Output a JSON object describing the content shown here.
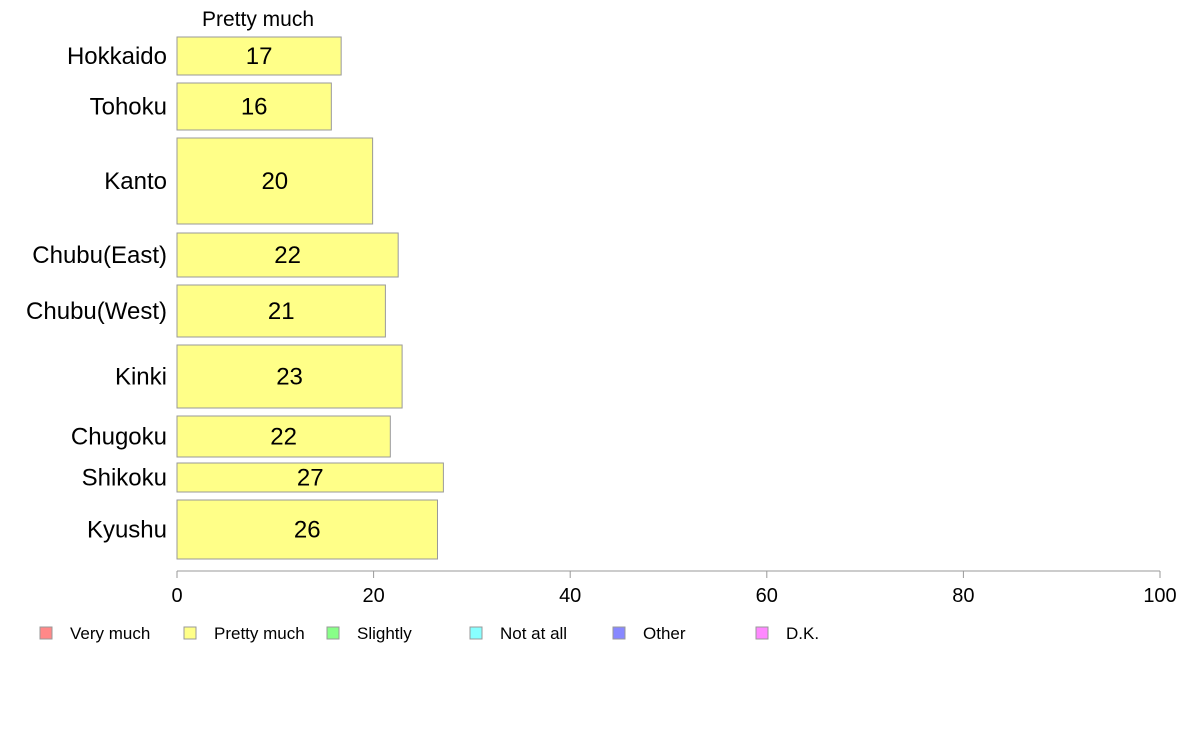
{
  "chart_data": {
    "type": "bar",
    "orientation": "horizontal",
    "column_header": "Pretty much",
    "categories": [
      "Hokkaido",
      "Tohoku",
      "Kanto",
      "Chubu(East)",
      "Chubu(West)",
      "Kinki",
      "Chugoku",
      "Shikoku",
      "Kyushu"
    ],
    "series": [
      {
        "name": "Pretty much",
        "values": [
          16.7,
          15.7,
          19.9,
          22.5,
          21.2,
          22.9,
          21.7,
          27.1,
          26.5
        ],
        "labels": [
          "17",
          "16",
          "20",
          "22",
          "21",
          "23",
          "22",
          "27",
          "26"
        ]
      }
    ],
    "xlim": [
      0,
      100
    ],
    "xticks": [
      0,
      20,
      40,
      60,
      80,
      100
    ],
    "xtick_labels": [
      "0",
      "20",
      "40",
      "60",
      "80",
      "100"
    ],
    "bar_color": "#ffff88",
    "bar_edge_color": "#999999",
    "grid": false,
    "legend": {
      "placement": "bottom",
      "items": [
        {
          "label": "Very much",
          "color": "#ff8888"
        },
        {
          "label": "Pretty much",
          "color": "#ffff88"
        },
        {
          "label": "Slightly",
          "color": "#88ff88"
        },
        {
          "label": "Not at all",
          "color": "#88ffff"
        },
        {
          "label": "Other",
          "color": "#8888ff"
        },
        {
          "label": "D.K.",
          "color": "#ff88ff"
        }
      ]
    }
  }
}
